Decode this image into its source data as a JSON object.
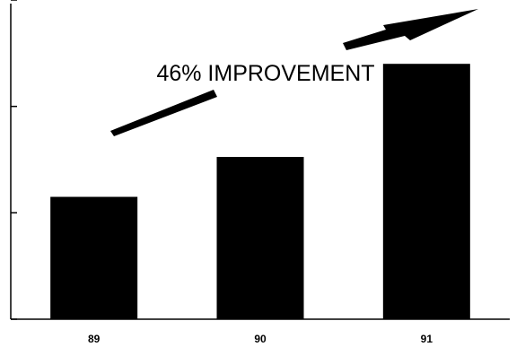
{
  "chart_data": {
    "type": "bar",
    "categories": [
      "89",
      "90",
      "91"
    ],
    "values": [
      2.3,
      3.05,
      4.8
    ],
    "ylim": [
      0,
      6
    ],
    "yticks": [
      0,
      2,
      4,
      6
    ],
    "bar_color": "#000000",
    "grid": false,
    "legend": "none",
    "annotation": "46% IMPROVEMENT",
    "annotation_arrow": "upward-trend-arrow"
  }
}
